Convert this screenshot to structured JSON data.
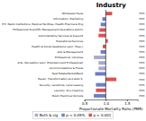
{
  "chart_data": {
    "type": "bar",
    "orientation": "horizontal",
    "title": "Industry",
    "xlabel": "Proportionate Mortality Ratio (PMR)",
    "categories": [
      "Wholesale Trade",
      "Information- Publishing",
      "P.H. Radio Institutions, Medical Facilities, Health Pharma & Eng",
      "Professional Scientific Management Operations Admin",
      "Administrative Services & Support",
      "Educational Services",
      "Health & Social Assistance (excl. Hosp.)",
      "Arts & Management",
      "Professional, Libraries",
      "Arts, Recreation (excl. Entertainment Professional)",
      "Accommodations & Foods",
      "Real Estate/Rental/Bank",
      "Repair, Transformation and Auto S.",
      "Security, Landlords, Land Leasing",
      "Laundry, Dry Cleaning",
      "Public Electrical Schools"
    ],
    "series": [
      {
        "name": "Both & sig",
        "color": "#aaaacc",
        "values": [
          null,
          null,
          null,
          null,
          null,
          null,
          null,
          null,
          0.72,
          0.83,
          0.83,
          null,
          null,
          null,
          null,
          null
        ]
      },
      {
        "name": "p < 0.05%",
        "color": "#6b7fc4",
        "values": [
          null,
          0.92,
          0.88,
          null,
          null,
          null,
          null,
          0.88,
          null,
          null,
          null,
          0.75,
          null,
          0.77,
          null,
          0.72
        ]
      },
      {
        "name": "p < 0.001",
        "color": "#d9534f",
        "values": [
          1.15,
          null,
          null,
          0.85,
          0.83,
          1.05,
          0.93,
          null,
          null,
          null,
          null,
          null,
          1.25,
          null,
          0.77,
          null
        ]
      }
    ],
    "ref_line": 1.0,
    "annotations": [
      "PMR",
      "PMR",
      "PMR",
      "PMR",
      "PMR",
      "PMR",
      "PMR",
      "PMR",
      "PMR",
      "PMR",
      "PMR",
      "PMR",
      "PMR",
      "PMR",
      "PMR",
      "PMR"
    ],
    "xlim": [
      0.5,
      1.75
    ],
    "xticks": [
      0.5,
      {
        "value": 1.0,
        "label": "1.0"
      },
      1.5
    ],
    "legend": "bottom",
    "grid": false
  }
}
